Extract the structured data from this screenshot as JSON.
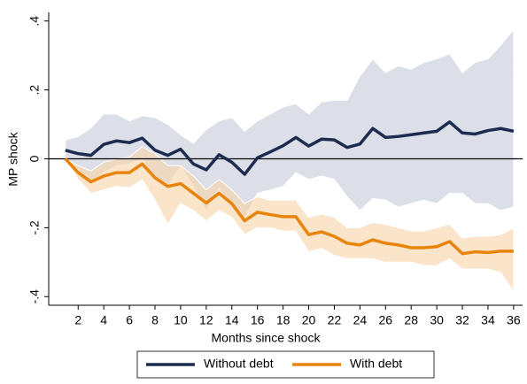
{
  "chart_data": {
    "type": "line",
    "x_label": "Months since shock",
    "y_label": "MP shock",
    "x": [
      1,
      2,
      3,
      4,
      5,
      6,
      7,
      8,
      9,
      10,
      11,
      12,
      13,
      14,
      15,
      16,
      17,
      18,
      19,
      20,
      21,
      22,
      23,
      24,
      25,
      26,
      27,
      28,
      29,
      30,
      31,
      32,
      33,
      34,
      35,
      36
    ],
    "xlim": [
      -0.3,
      36.7
    ],
    "ylim": [
      -0.425,
      0.425
    ],
    "xticks": [
      2,
      4,
      6,
      8,
      10,
      12,
      14,
      16,
      18,
      20,
      22,
      24,
      26,
      28,
      30,
      32,
      34,
      36
    ],
    "yticks": [
      {
        "value": -0.4,
        "label": "-.4"
      },
      {
        "value": -0.2,
        "label": "-.2"
      },
      0,
      {
        "value": 0.2,
        "label": ".2"
      },
      {
        "value": 0.4,
        "label": ".4"
      }
    ],
    "reference_line": 0,
    "legend": "bottom",
    "series": [
      {
        "name": "Without debt",
        "color": "#1c2b4f",
        "band_color": "#c5cad8",
        "values": [
          0.025,
          0.015,
          0.01,
          0.042,
          0.052,
          0.047,
          0.06,
          0.025,
          0.01,
          0.028,
          -0.015,
          -0.032,
          0.012,
          -0.01,
          -0.045,
          0.003,
          0.02,
          0.038,
          0.062,
          0.037,
          0.057,
          0.055,
          0.033,
          0.043,
          0.088,
          0.062,
          0.065,
          0.07,
          0.075,
          0.08,
          0.107,
          0.075,
          0.072,
          0.082,
          0.088,
          0.08
        ],
        "upper": [
          0.055,
          0.065,
          0.09,
          0.13,
          0.13,
          0.11,
          0.125,
          0.12,
          0.1,
          0.07,
          0.045,
          0.085,
          0.11,
          0.12,
          0.08,
          0.11,
          0.13,
          0.15,
          0.16,
          0.13,
          0.165,
          0.17,
          0.17,
          0.24,
          0.29,
          0.25,
          0.27,
          0.26,
          0.28,
          0.29,
          0.305,
          0.25,
          0.28,
          0.29,
          0.33,
          0.375
        ],
        "lower": [
          0,
          -0.03,
          -0.07,
          -0.04,
          -0.02,
          -0.015,
          0,
          -0.06,
          -0.08,
          -0.02,
          -0.08,
          -0.15,
          -0.085,
          -0.14,
          -0.17,
          -0.1,
          -0.09,
          -0.08,
          -0.04,
          -0.06,
          -0.05,
          -0.06,
          -0.11,
          -0.15,
          -0.115,
          -0.12,
          -0.14,
          -0.13,
          -0.12,
          -0.13,
          -0.1,
          -0.1,
          -0.13,
          -0.13,
          -0.15,
          -0.14
        ]
      },
      {
        "name": "With debt",
        "color": "#e8830c",
        "band_color": "#f9d3a6",
        "values": [
          0,
          -0.04,
          -0.067,
          -0.05,
          -0.04,
          -0.04,
          -0.015,
          -0.055,
          -0.08,
          -0.072,
          -0.1,
          -0.128,
          -0.1,
          -0.13,
          -0.18,
          -0.155,
          -0.162,
          -0.168,
          -0.168,
          -0.22,
          -0.212,
          -0.225,
          -0.245,
          -0.25,
          -0.235,
          -0.245,
          -0.25,
          -0.258,
          -0.258,
          -0.255,
          -0.24,
          -0.275,
          -0.27,
          -0.272,
          -0.268,
          -0.268
        ],
        "upper": [
          0,
          -0.02,
          -0.035,
          -0.01,
          0,
          0.005,
          0.035,
          0.015,
          -0.02,
          -0.02,
          -0.05,
          -0.09,
          -0.06,
          -0.09,
          -0.13,
          -0.11,
          -0.12,
          -0.12,
          -0.12,
          -0.17,
          -0.16,
          -0.17,
          -0.2,
          -0.2,
          -0.185,
          -0.19,
          -0.2,
          -0.21,
          -0.21,
          -0.2,
          -0.19,
          -0.23,
          -0.225,
          -0.225,
          -0.22,
          -0.2
        ],
        "lower": [
          0,
          -0.06,
          -0.1,
          -0.09,
          -0.08,
          -0.085,
          -0.06,
          -0.12,
          -0.19,
          -0.13,
          -0.15,
          -0.18,
          -0.15,
          -0.17,
          -0.22,
          -0.2,
          -0.2,
          -0.21,
          -0.21,
          -0.27,
          -0.26,
          -0.28,
          -0.29,
          -0.29,
          -0.29,
          -0.3,
          -0.3,
          -0.3,
          -0.31,
          -0.31,
          -0.29,
          -0.32,
          -0.32,
          -0.32,
          -0.33,
          -0.385
        ]
      }
    ]
  }
}
